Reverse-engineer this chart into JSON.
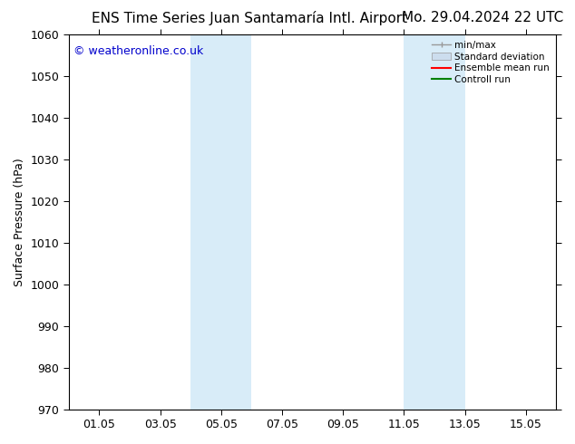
{
  "title_left": "ENS Time Series Juan Santamaría Intl. Airport",
  "title_right": "Mo. 29.04.2024 22 UTC",
  "ylabel": "Surface Pressure (hPa)",
  "watermark": "© weatheronline.co.uk",
  "ylim": [
    970,
    1060
  ],
  "yticks": [
    970,
    980,
    990,
    1000,
    1010,
    1020,
    1030,
    1040,
    1050,
    1060
  ],
  "xtick_labels": [
    "01.05",
    "03.05",
    "05.05",
    "07.05",
    "09.05",
    "11.05",
    "13.05",
    "15.05"
  ],
  "xtick_positions": [
    1,
    3,
    5,
    7,
    9,
    11,
    13,
    15
  ],
  "xlim": [
    0,
    16
  ],
  "shaded_bands": [
    {
      "x_start": 4.0,
      "x_end": 6.0
    },
    {
      "x_start": 11.0,
      "x_end": 13.0
    }
  ],
  "shaded_color": "#d8ecf8",
  "background_color": "#ffffff",
  "watermark_color": "#0000cc",
  "legend_labels": [
    "min/max",
    "Standard deviation",
    "Ensemble mean run",
    "Controll run"
  ],
  "legend_colors_line": [
    "#999999",
    "#bbbbbb",
    "#ff0000",
    "#008000"
  ],
  "title_fontsize": 11,
  "label_fontsize": 9,
  "tick_fontsize": 9
}
